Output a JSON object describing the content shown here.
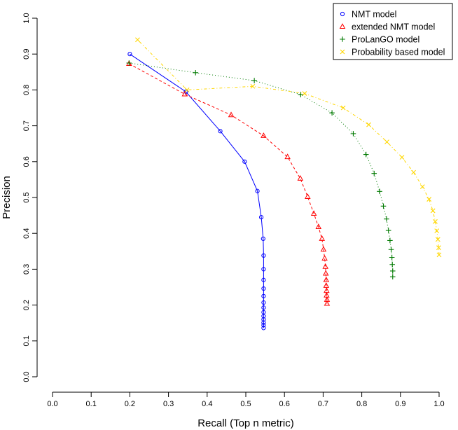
{
  "chart_data": {
    "type": "line",
    "xlabel": "Recall (Top n metric)",
    "ylabel": "Precision",
    "xlim": [
      0.0,
      1.0
    ],
    "ylim": [
      0.0,
      1.0
    ],
    "x_ticks": [
      "0.0",
      "0.1",
      "0.2",
      "0.3",
      "0.4",
      "0.5",
      "0.6",
      "0.7",
      "0.8",
      "0.9",
      "1.0"
    ],
    "y_ticks": [
      "0.0",
      "0.1",
      "0.2",
      "0.3",
      "0.4",
      "0.5",
      "0.6",
      "0.7",
      "0.8",
      "0.9",
      "1.0"
    ],
    "grid": false,
    "legend_position": "top-right",
    "series": [
      {
        "name": "NMT model",
        "color": "#0000ff",
        "marker": "circle",
        "line_style": "solid",
        "x": [
          0.2,
          0.345,
          0.434,
          0.497,
          0.53,
          0.54,
          0.545,
          0.546,
          0.546,
          0.546,
          0.546,
          0.546,
          0.546,
          0.546,
          0.546,
          0.546,
          0.546,
          0.546,
          0.546,
          0.546
        ],
        "y": [
          0.9,
          0.795,
          0.685,
          0.6,
          0.518,
          0.445,
          0.385,
          0.338,
          0.3,
          0.27,
          0.246,
          0.225,
          0.207,
          0.193,
          0.18,
          0.169,
          0.16,
          0.151,
          0.144,
          0.136
        ]
      },
      {
        "name": "extended NMT model",
        "color": "#ff0000",
        "marker": "triangle",
        "line_style": "dashed",
        "x": [
          0.198,
          0.342,
          0.462,
          0.546,
          0.608,
          0.641,
          0.66,
          0.676,
          0.688,
          0.697,
          0.701,
          0.704,
          0.706,
          0.707,
          0.708,
          0.708,
          0.709,
          0.709,
          0.71,
          0.71
        ],
        "y": [
          0.873,
          0.788,
          0.73,
          0.672,
          0.613,
          0.553,
          0.502,
          0.455,
          0.418,
          0.385,
          0.355,
          0.33,
          0.307,
          0.288,
          0.27,
          0.254,
          0.24,
          0.227,
          0.215,
          0.204
        ]
      },
      {
        "name": "ProLanGO model",
        "color": "#007a00",
        "marker": "plus",
        "line_style": "dotted",
        "x": [
          0.198,
          0.37,
          0.522,
          0.642,
          0.723,
          0.778,
          0.811,
          0.832,
          0.846,
          0.856,
          0.864,
          0.869,
          0.873,
          0.876,
          0.878,
          0.879,
          0.88,
          0.88
        ],
        "y": [
          0.875,
          0.848,
          0.826,
          0.787,
          0.736,
          0.678,
          0.62,
          0.567,
          0.517,
          0.476,
          0.44,
          0.408,
          0.38,
          0.355,
          0.333,
          0.313,
          0.295,
          0.279
        ]
      },
      {
        "name": "Probability based model",
        "color": "#ffd700",
        "marker": "x",
        "line_style": "dashdot",
        "x": [
          0.22,
          0.348,
          0.518,
          0.652,
          0.752,
          0.818,
          0.865,
          0.904,
          0.934,
          0.957,
          0.974,
          0.984,
          0.99,
          0.994,
          0.997,
          0.999,
          1.0
        ],
        "y": [
          0.94,
          0.8,
          0.81,
          0.79,
          0.75,
          0.703,
          0.655,
          0.612,
          0.57,
          0.53,
          0.495,
          0.463,
          0.433,
          0.407,
          0.383,
          0.36,
          0.34
        ]
      }
    ]
  }
}
